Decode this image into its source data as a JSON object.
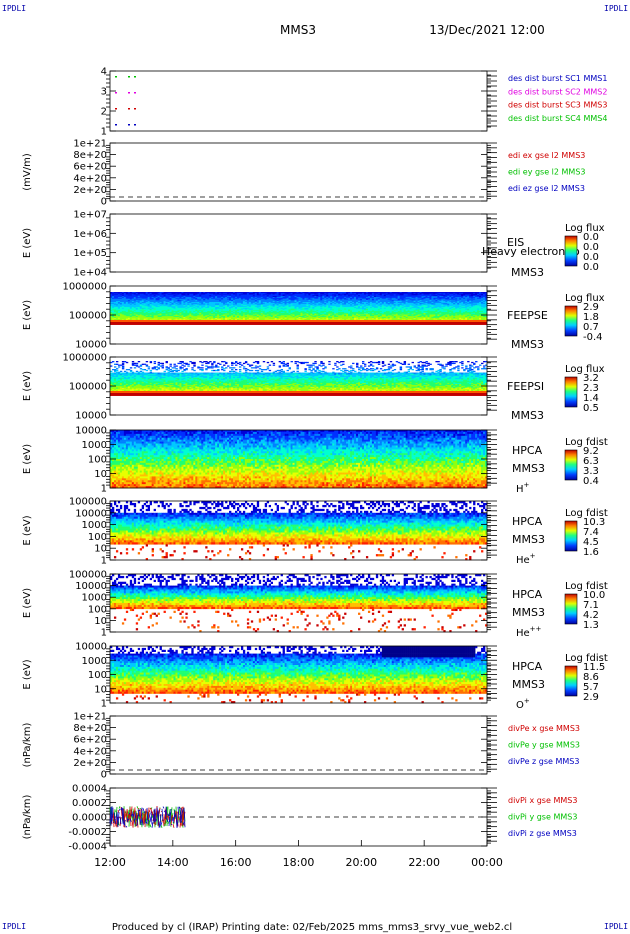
{
  "corner_tag": "IPDLI",
  "header": {
    "title": "MMS3",
    "date": "13/Dec/2021 12:00"
  },
  "footer": {
    "text": "Produced by cl (IRAP)   Printing date: 02/Feb/2025   mms_mms3_srvy_vue_web2.cl"
  },
  "time_axis": {
    "ticks": [
      "12:00",
      "14:00",
      "16:00",
      "18:00",
      "20:00",
      "22:00",
      "00:00"
    ]
  },
  "colors": {
    "red": "#d00000",
    "green": "#00c000",
    "blue": "#0000c0",
    "magenta": "#e000e0"
  },
  "chart_data": [
    {
      "type": "scatter",
      "id": "burst",
      "yticks": [
        "4",
        "3",
        "2",
        "1"
      ],
      "legend": [
        {
          "text": "des dist burst SC1 MMS1",
          "color": "#0000c0"
        },
        {
          "text": "des dist burst SC2 MMS2",
          "color": "#e000e0"
        },
        {
          "text": "des dist burst SC3 MMS3",
          "color": "#d00000"
        },
        {
          "text": "des dist burst SC4 MMS4",
          "color": "#00c000"
        }
      ]
    },
    {
      "type": "line",
      "id": "edi_e",
      "ylabel": "(mV/m)",
      "yticks": [
        "1e+21",
        "8e+20",
        "6e+20",
        "4e+20",
        "2e+20",
        "0"
      ],
      "legend": [
        {
          "text": "edi ex gse l2 MMS3",
          "color": "#d00000"
        },
        {
          "text": "edi ey gse l2 MMS3",
          "color": "#00c000"
        },
        {
          "text": "edi ez gse l2 MMS3",
          "color": "#0000c0"
        }
      ]
    },
    {
      "type": "heatmap",
      "id": "eis",
      "ylabel": "E (eV)",
      "yticks": [
        "1e+07",
        "1e+06",
        "1e+05",
        "1e+04"
      ],
      "labels": [
        "EIS",
        "MMS3"
      ],
      "overlay": "Heavy electron to",
      "colorbar": {
        "title": "Log flux",
        "ticks": [
          "0.0",
          "0.0",
          "0.0",
          "0.0"
        ]
      }
    },
    {
      "type": "heatmap",
      "id": "feepse",
      "ylabel": "E (eV)",
      "yticks": [
        "1000000",
        "100000",
        "10000"
      ],
      "labels": [
        "FEEPSE",
        "MMS3"
      ],
      "colorbar": {
        "title": "Log flux",
        "ticks": [
          "2.9",
          "1.8",
          "0.7",
          "-0.4"
        ]
      }
    },
    {
      "type": "heatmap",
      "id": "feepsi",
      "ylabel": "E (eV)",
      "yticks": [
        "1000000",
        "100000",
        "10000"
      ],
      "labels": [
        "FEEPSI",
        "MMS3"
      ],
      "colorbar": {
        "title": "Log flux",
        "ticks": [
          "3.2",
          "2.3",
          "1.4",
          "0.5"
        ]
      }
    },
    {
      "type": "heatmap",
      "id": "hpca_h",
      "ylabel": "E (eV)",
      "yticks": [
        "10000",
        "1000",
        "100",
        "10",
        "1"
      ],
      "labels": [
        "HPCA",
        "MMS3"
      ],
      "species": "H",
      "species_sup": "+",
      "colorbar": {
        "title": "Log fdist",
        "ticks": [
          "9.2",
          "6.3",
          "3.3",
          "0.4"
        ]
      }
    },
    {
      "type": "heatmap",
      "id": "hpca_he",
      "ylabel": "E (eV)",
      "yticks": [
        "100000",
        "10000",
        "1000",
        "100",
        "10",
        "1"
      ],
      "labels": [
        "HPCA",
        "MMS3"
      ],
      "species": "He",
      "species_sup": "+",
      "colorbar": {
        "title": "Log fdist",
        "ticks": [
          "10.3",
          "7.4",
          "4.5",
          "1.6"
        ]
      }
    },
    {
      "type": "heatmap",
      "id": "hpca_hepp",
      "ylabel": "E (eV)",
      "yticks": [
        "100000",
        "10000",
        "1000",
        "100",
        "10",
        "1"
      ],
      "labels": [
        "HPCA",
        "MMS3"
      ],
      "species": "He",
      "species_sup": "++",
      "colorbar": {
        "title": "Log fdist",
        "ticks": [
          "10.0",
          "7.1",
          "4.2",
          "1.3"
        ]
      }
    },
    {
      "type": "heatmap",
      "id": "hpca_o",
      "ylabel": "E (eV)",
      "yticks": [
        "10000",
        "1000",
        "100",
        "10",
        "1"
      ],
      "labels": [
        "HPCA",
        "MMS3"
      ],
      "species": "O",
      "species_sup": "+",
      "colorbar": {
        "title": "Log fdist",
        "ticks": [
          "11.5",
          "8.6",
          "5.7",
          "2.9"
        ]
      }
    },
    {
      "type": "line",
      "id": "divpe",
      "ylabel": "(nPa/km)",
      "yticks": [
        "1e+21",
        "8e+20",
        "6e+20",
        "4e+20",
        "2e+20",
        "0"
      ],
      "legend": [
        {
          "text": "divPe x gse MMS3",
          "color": "#d00000"
        },
        {
          "text": "divPe y gse MMS3",
          "color": "#00c000"
        },
        {
          "text": "divPe z gse MMS3",
          "color": "#0000c0"
        }
      ]
    },
    {
      "type": "line",
      "id": "divpi",
      "ylabel": "(nPa/km)",
      "yticks": [
        "0.0004",
        "0.0002",
        "0.0000",
        "-0.0002",
        "-0.0004"
      ],
      "legend": [
        {
          "text": "divPi x gse MMS3",
          "color": "#d00000"
        },
        {
          "text": "divPi y gse MMS3",
          "color": "#00c000"
        },
        {
          "text": "divPi z gse MMS3",
          "color": "#0000c0"
        }
      ]
    }
  ]
}
